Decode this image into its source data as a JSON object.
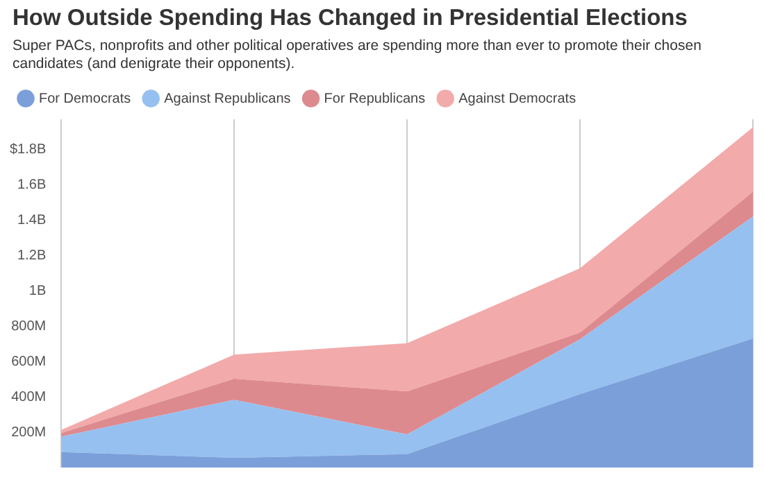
{
  "chart_data": {
    "type": "area",
    "title": "How Outside Spending Has Changed in Presidential Elections",
    "subtitle": "Super PACs, nonprofits and other political operatives are spending more than ever to promote their chosen candidates (and denigrate their opponents).",
    "categories": [
      null,
      null,
      null,
      null,
      null
    ],
    "stacked": true,
    "series": [
      {
        "name": "For Democrats",
        "color": "#7b9fd9",
        "values": [
          87000000,
          55000000,
          76000000,
          415000000,
          730000000
        ]
      },
      {
        "name": "Against Republicans",
        "color": "#95c0f0",
        "values": [
          88000000,
          328000000,
          111000000,
          310000000,
          690000000
        ]
      },
      {
        "name": "For Republicans",
        "color": "#dd8a8f",
        "values": [
          20000000,
          119000000,
          244000000,
          38000000,
          140000000
        ]
      },
      {
        "name": "Against Democrats",
        "color": "#f2aaab",
        "values": [
          18000000,
          137000000,
          272000000,
          364000000,
          365000000
        ]
      }
    ],
    "ylim": [
      0,
      1970000000
    ],
    "yticks": [
      {
        "value": 200000000,
        "label": "200M"
      },
      {
        "value": 400000000,
        "label": "400M"
      },
      {
        "value": 600000000,
        "label": "600M"
      },
      {
        "value": 800000000,
        "label": "800M"
      },
      {
        "value": 1000000000,
        "label": "1B"
      },
      {
        "value": 1200000000,
        "label": "1.2B"
      },
      {
        "value": 1400000000,
        "label": "1.4B"
      },
      {
        "value": 1600000000,
        "label": "1.6B"
      },
      {
        "value": 1800000000,
        "label": "$1.8B"
      }
    ],
    "grid": "x",
    "legend": "top left",
    "tick_labels": "y"
  }
}
